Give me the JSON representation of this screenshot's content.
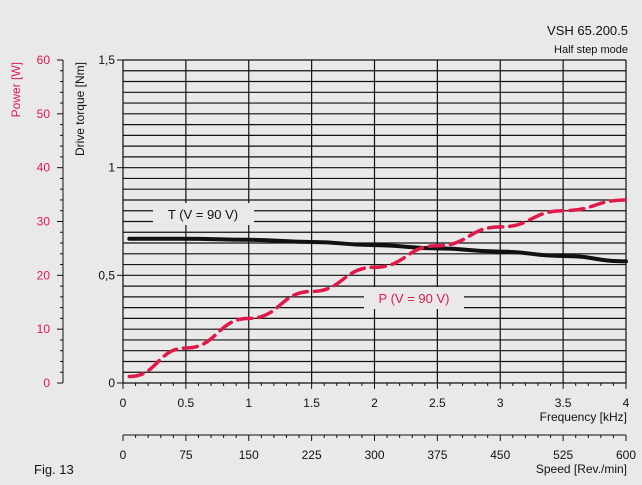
{
  "chart_data": {
    "type": "line",
    "title": "VSH 65.200.5",
    "subtitle": "Half step mode",
    "figure_label": "Fig. 13",
    "colors": {
      "torque": "#111111",
      "power": "#e0194b",
      "background": "#e9e9e9"
    },
    "x_axis": {
      "label": "Frequency [kHz]",
      "range": [
        0,
        4
      ],
      "ticks": [
        "0",
        "0.5",
        "1",
        "1.5",
        "2",
        "2.5",
        "3",
        "3.5",
        "4"
      ]
    },
    "x2_axis": {
      "label": "Speed [Rev./min]",
      "range": [
        0,
        600
      ],
      "ticks": [
        "0",
        "75",
        "150",
        "225",
        "300",
        "375",
        "450",
        "525",
        "600"
      ]
    },
    "y_left_axis": {
      "label": "Power [W]",
      "range": [
        0,
        60
      ],
      "ticks": [
        "0",
        "10",
        "20",
        "30",
        "40",
        "50",
        "60"
      ]
    },
    "y_right_axis": {
      "label": "Drive torque [Nm]",
      "range": [
        0,
        1.5
      ],
      "ticks": [
        "0",
        "0,5",
        "1",
        "1,5"
      ]
    },
    "series": [
      {
        "name": "T (V = 90 V)",
        "axis": "torque",
        "style": "solid",
        "x": [
          0.05,
          0.5,
          1.0,
          1.5,
          2.0,
          2.5,
          3.0,
          3.5,
          4.0
        ],
        "values": [
          0.67,
          0.67,
          0.665,
          0.655,
          0.64,
          0.625,
          0.61,
          0.59,
          0.565
        ]
      },
      {
        "name": "P (V = 90 V)",
        "axis": "power",
        "style": "dashed",
        "x": [
          0.05,
          0.5,
          1.0,
          1.5,
          2.0,
          2.5,
          3.0,
          3.5,
          4.0
        ],
        "values": [
          1.2,
          6.5,
          12.0,
          17.0,
          21.5,
          25.5,
          29.0,
          32.0,
          34.0
        ]
      }
    ],
    "grid": true
  }
}
